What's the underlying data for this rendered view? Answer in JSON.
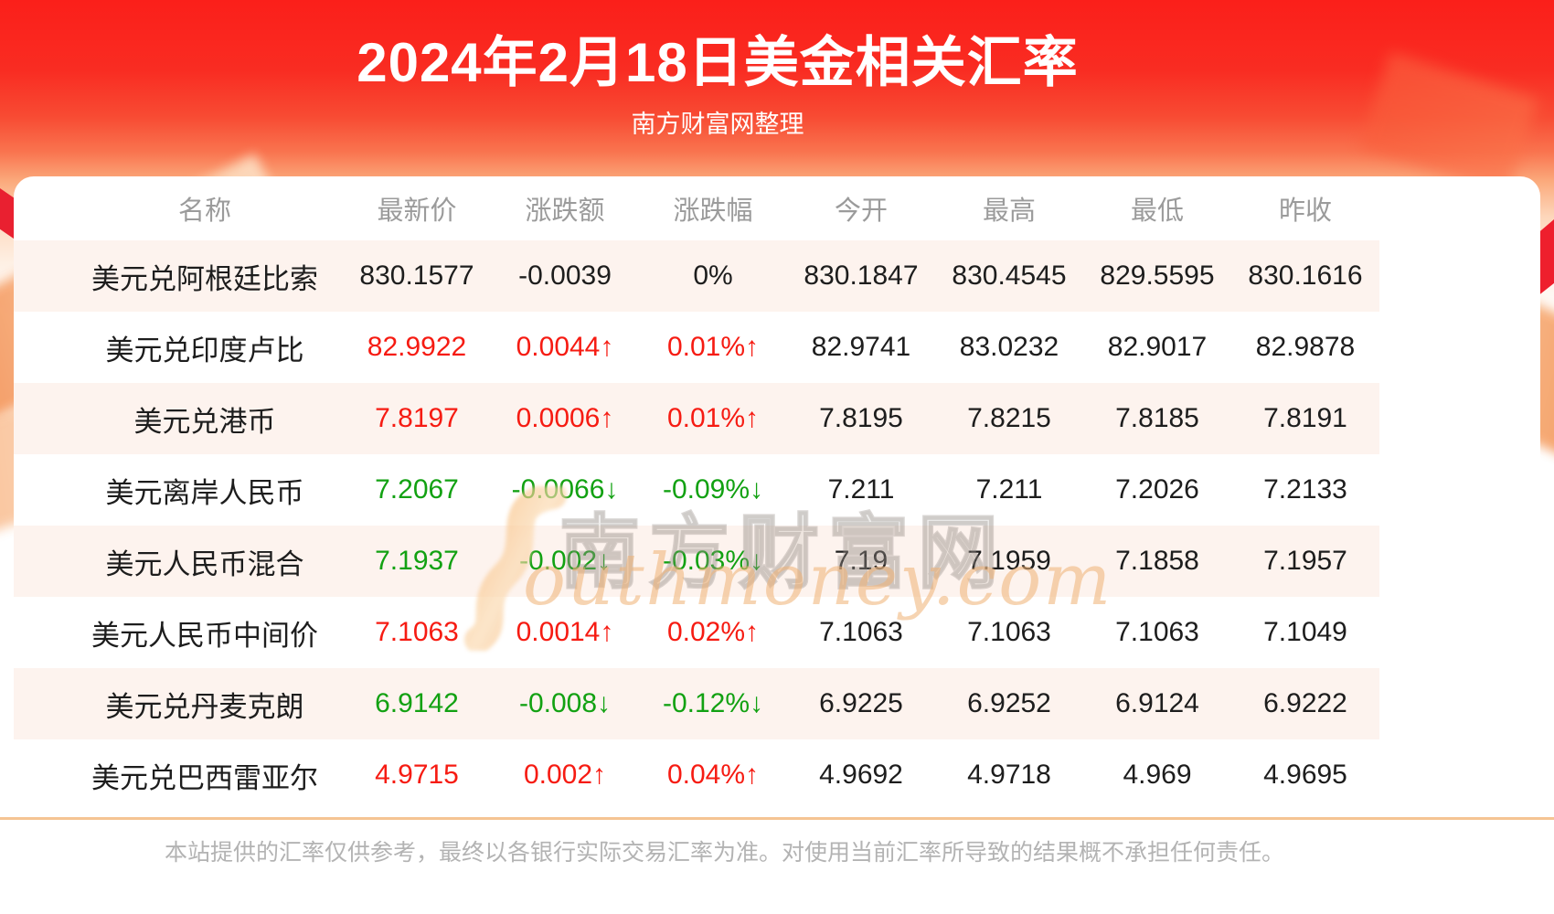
{
  "header": {
    "title": "2024年2月18日美金相关汇率",
    "subtitle": "南方财富网整理"
  },
  "chart_data": {
    "type": "table",
    "title": "2024年2月18日美金相关汇率",
    "columns": [
      "名称",
      "最新价",
      "涨跌额",
      "涨跌幅",
      "今开",
      "最高",
      "最低",
      "昨收"
    ],
    "rows": [
      [
        "美元兑阿根廷比索",
        "830.1577",
        "-0.0039",
        "0%",
        "830.1847",
        "830.4545",
        "829.5595",
        "830.1616"
      ],
      [
        "美元兑印度卢比",
        "82.9922",
        "0.0044↑",
        "0.01%↑",
        "82.9741",
        "83.0232",
        "82.9017",
        "82.9878"
      ],
      [
        "美元兑港币",
        "7.8197",
        "0.0006↑",
        "0.01%↑",
        "7.8195",
        "7.8215",
        "7.8185",
        "7.8191"
      ],
      [
        "美元离岸人民币",
        "7.2067",
        "-0.0066↓",
        "-0.09%↓",
        "7.211",
        "7.211",
        "7.2026",
        "7.2133"
      ],
      [
        "美元人民币混合",
        "7.1937",
        "-0.002↓",
        "-0.03%↓",
        "7.19",
        "7.1959",
        "7.1858",
        "7.1957"
      ],
      [
        "美元人民币中间价",
        "7.1063",
        "0.0014↑",
        "0.02%↑",
        "7.1063",
        "7.1063",
        "7.1063",
        "7.1049"
      ],
      [
        "美元兑丹麦克朗",
        "6.9142",
        "-0.008↓",
        "-0.12%↓",
        "6.9225",
        "6.9252",
        "6.9124",
        "6.9222"
      ],
      [
        "美元兑巴西雷亚尔",
        "4.9715",
        "0.002↑",
        "0.04%↑",
        "4.9692",
        "4.9718",
        "4.969",
        "4.9695"
      ]
    ],
    "trends": [
      "flat",
      "up",
      "up",
      "down",
      "down",
      "up",
      "down",
      "up"
    ]
  },
  "watermark": {
    "cn": "南方财富网",
    "en": "outhmoney.com"
  },
  "footer": {
    "disclaimer": "本站提供的汇率仅供参考，最终以各银行实际交易汇率为准。对使用当前汇率所导致的结果概不承担任何责任。"
  },
  "theme": {
    "up-color": "#f61b12",
    "down-color": "#12a112",
    "flat-color": "#1d1d1d",
    "muted": "#9b9b9b",
    "row-alt-bg": "#fdf3ee",
    "divider": "#f5c493",
    "footer-text": "#b3b3b3"
  }
}
